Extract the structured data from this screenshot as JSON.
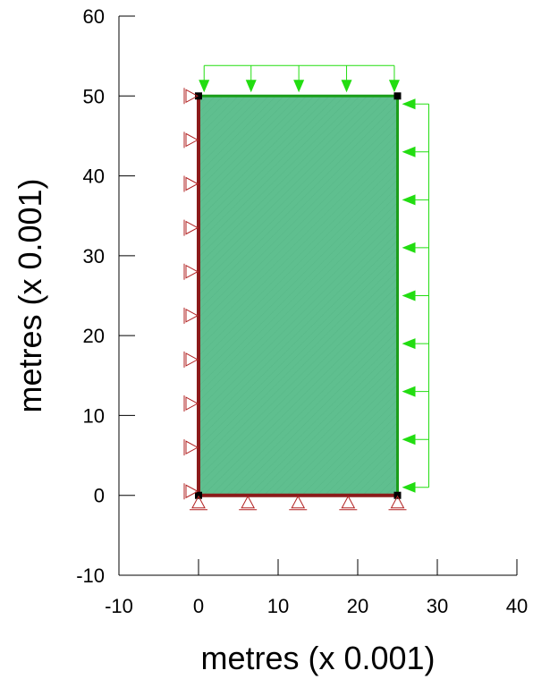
{
  "chart_data": {
    "type": "diagram",
    "xlabel": "metres (x 0.001)",
    "ylabel": "metres (x 0.001)",
    "xlim": [
      -10,
      40
    ],
    "ylim": [
      -10,
      60
    ],
    "x_ticks": [
      -10,
      0,
      10,
      20,
      30,
      40
    ],
    "y_ticks": [
      -10,
      0,
      10,
      20,
      30,
      40,
      50,
      60
    ],
    "x_tick_labels": [
      "-10",
      "0",
      "10",
      "20",
      "30",
      "40"
    ],
    "y_tick_labels": [
      "-10",
      "0",
      "10",
      "20",
      "30",
      "40",
      "50",
      "60"
    ],
    "domain": {
      "x0": 0,
      "y0": 0,
      "x1": 25,
      "y1": 50
    },
    "colors": {
      "fill": "#5fbf8f",
      "load": "#22dd11",
      "support": "#b22222",
      "boundary_left": "#8b1a1a",
      "boundary_right": "#1a9e1a",
      "corner": "#000000"
    },
    "top_load_arrows_x": [
      0.7,
      6.6,
      12.6,
      18.6,
      24.6
    ],
    "right_load_arrows_y": [
      49,
      43,
      37,
      31,
      25,
      19,
      13,
      7,
      1
    ],
    "left_supports_y": [
      50,
      44.5,
      39,
      33.5,
      28,
      22.5,
      17,
      11.5,
      6,
      0.5
    ],
    "bottom_supports_x": [
      0,
      6.2,
      12.5,
      18.8,
      25
    ]
  }
}
